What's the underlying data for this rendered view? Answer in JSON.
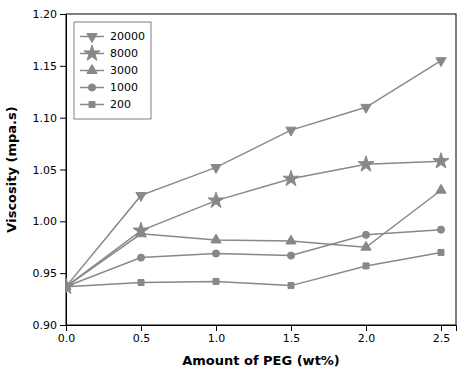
{
  "chart_data": {
    "type": "line",
    "x": [
      0.0,
      0.5,
      1.0,
      1.5,
      2.0,
      2.5
    ],
    "xlabel": "Amount of PEG (wt%)",
    "ylabel": "Viscosity (mpa.s)",
    "series": [
      {
        "name": "20000",
        "color": "#888888",
        "marker": "triangle-down",
        "values": [
          0.937,
          1.025,
          1.052,
          1.088,
          1.11,
          1.155
        ]
      },
      {
        "name": "8000",
        "color": "#888888",
        "marker": "star",
        "values": [
          0.937,
          0.991,
          1.02,
          1.041,
          1.055,
          1.058
        ]
      },
      {
        "name": "3000",
        "color": "#888888",
        "marker": "triangle-up",
        "values": [
          0.937,
          0.988,
          0.982,
          0.981,
          0.975,
          1.03
        ]
      },
      {
        "name": "1000",
        "color": "#888888",
        "marker": "circle",
        "values": [
          0.937,
          0.965,
          0.969,
          0.967,
          0.987,
          0.992
        ]
      },
      {
        "name": "200",
        "color": "#888888",
        "marker": "square",
        "values": [
          0.937,
          0.941,
          0.942,
          0.938,
          0.957,
          0.97
        ]
      }
    ],
    "xlim": [
      0.0,
      2.6
    ],
    "ylim": [
      0.9,
      1.2
    ],
    "xticks": [
      {
        "value": 0.0,
        "label": "0.0"
      },
      0.5,
      {
        "value": 1.0,
        "label": "1.0"
      },
      1.5,
      {
        "value": 2.0,
        "label": "2.0"
      },
      2.5
    ],
    "yticks": [
      {
        "value": 0.9,
        "label": "0.90"
      },
      0.95,
      {
        "value": 1.0,
        "label": "1.00"
      },
      1.05,
      {
        "value": 1.1,
        "label": "1.10"
      },
      1.15,
      {
        "value": 1.2,
        "label": "1.20"
      }
    ],
    "legend": "upper left",
    "grid": false
  }
}
